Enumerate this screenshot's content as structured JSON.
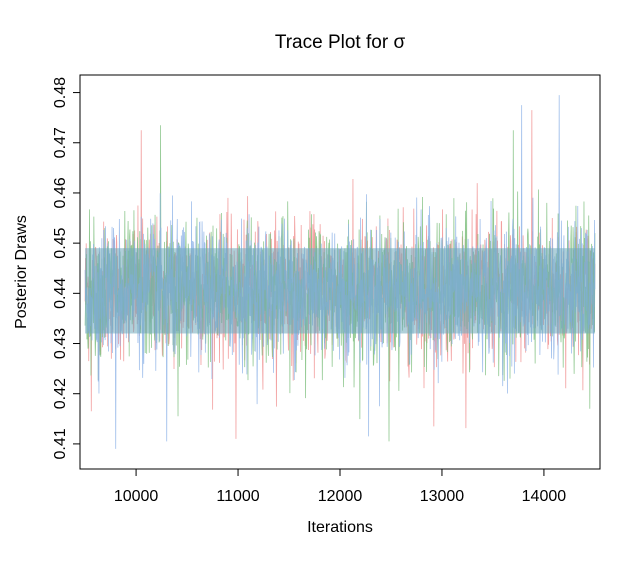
{
  "chart_data": {
    "type": "line",
    "title": "Trace Plot for σ",
    "xlabel": "Iterations",
    "ylabel": "Posterior Draws",
    "xlim": [
      9450,
      14550
    ],
    "ylim": [
      0.405,
      0.4835
    ],
    "x_ticks": [
      10000,
      11000,
      12000,
      13000,
      14000
    ],
    "x_tick_labels": [
      "10000",
      "11000",
      "12000",
      "13000",
      "14000"
    ],
    "y_ticks": [
      0.41,
      0.42,
      0.43,
      0.44,
      0.45,
      0.46,
      0.47,
      0.48
    ],
    "y_tick_labels": [
      "0.41",
      "0.42",
      "0.43",
      "0.44",
      "0.45",
      "0.46",
      "0.47",
      "0.48"
    ],
    "grid": false,
    "legend": "none",
    "x_range": [
      9500,
      14500
    ],
    "series": [
      {
        "color": "#f08f8f",
        "mean": 0.4405,
        "sd": 0.0068,
        "approx_extremes": [
          {
            "x": 9560,
            "y": 0.4165
          },
          {
            "x": 10050,
            "y": 0.4725
          },
          {
            "x": 10980,
            "y": 0.411
          },
          {
            "x": 12920,
            "y": 0.4135
          },
          {
            "x": 13880,
            "y": 0.4765
          }
        ]
      },
      {
        "color": "#7fbf7f",
        "mean": 0.4405,
        "sd": 0.0068,
        "approx_extremes": [
          {
            "x": 10240,
            "y": 0.4735
          },
          {
            "x": 10410,
            "y": 0.4155
          },
          {
            "x": 12480,
            "y": 0.4105
          },
          {
            "x": 13700,
            "y": 0.4725
          },
          {
            "x": 14450,
            "y": 0.417
          }
        ]
      },
      {
        "color": "#8fb4e8",
        "mean": 0.4405,
        "sd": 0.0068,
        "approx_extremes": [
          {
            "x": 9800,
            "y": 0.409
          },
          {
            "x": 10300,
            "y": 0.4105
          },
          {
            "x": 12280,
            "y": 0.4115
          },
          {
            "x": 13780,
            "y": 0.4775
          },
          {
            "x": 14150,
            "y": 0.4795
          }
        ]
      }
    ],
    "dense_band_color": "#6fa9bc",
    "dense_band_range": [
      0.432,
      0.449
    ]
  }
}
